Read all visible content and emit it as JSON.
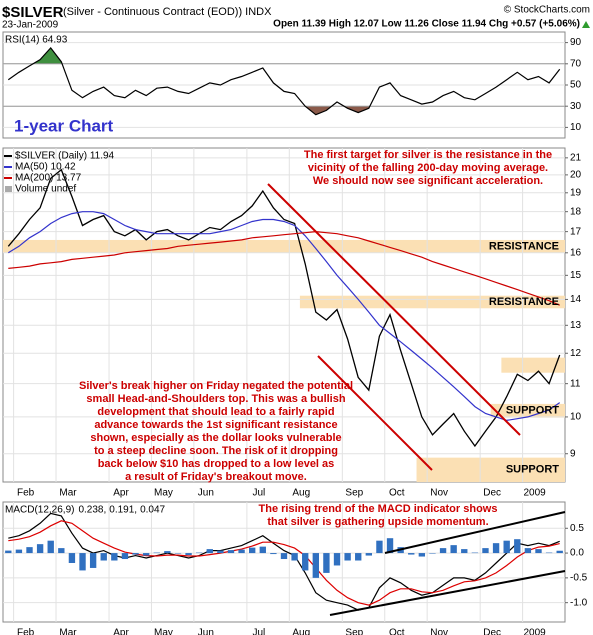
{
  "header": {
    "symbol": "$SILVER",
    "subtitle": "(Silver - Continuous Contract (EOD)) INDX",
    "copyright": "© StockCharts.com",
    "date": "23-Jan-2009",
    "quote": "Open 11.39 High 12.07 Low 11.26 Close 11.94 Chg +0.57 (+5.06%)"
  },
  "label": "1-year Chart",
  "annotations": {
    "target": [
      "The first target for silver is the resistance in the",
      "vicinity of the falling 200-day moving average.",
      "We should now see significant acceleration."
    ],
    "breakout": [
      "Silver's break higher on Friday negated the potential",
      "small Head-and-Shoulders top. This was a bullish",
      "development that should lead to a fairly rapid",
      "advance towards the 1st significant resistance",
      "shown, especially as the dollar looks vulnerable",
      "to a steep decline soon. The risk of it dropping",
      "back below $10 has dropped to a low level as",
      "a result of Friday's breakout move."
    ],
    "macd": [
      "The rising trend of the MACD indicator shows",
      "that silver is gathering upside momentum."
    ]
  },
  "chart_data": [
    {
      "type": "line",
      "ylim": [
        0,
        100
      ],
      "yticks": [
        10,
        30,
        50,
        70,
        90
      ],
      "grid": true,
      "fills": [
        {
          "level": 70,
          "side": "above",
          "color": "#3f8f3f"
        },
        {
          "level": 30,
          "side": "below",
          "color": "#8b5a4a"
        }
      ],
      "series": [
        {
          "name": "RSI(14) 64.93",
          "color": "#000000",
          "values": [
            55,
            62,
            68,
            74,
            85,
            72,
            45,
            38,
            44,
            48,
            40,
            38,
            45,
            40,
            47,
            48,
            44,
            42,
            47,
            52,
            50,
            55,
            58,
            62,
            66,
            52,
            44,
            42,
            30,
            22,
            26,
            34,
            28,
            24,
            28,
            48,
            52,
            40,
            36,
            32,
            34,
            40,
            44,
            38,
            36,
            42,
            48,
            55,
            62,
            55,
            58,
            52,
            64.93
          ]
        }
      ]
    },
    {
      "type": "line",
      "log": true,
      "ylim": [
        8.3,
        21.6
      ],
      "yticks": [
        9,
        10,
        11,
        12,
        13,
        14,
        15,
        16,
        17,
        18,
        19,
        20,
        21
      ],
      "grid": true,
      "categories": [
        null,
        "Feb",
        null,
        null,
        null,
        "Mar",
        null,
        null,
        null,
        null,
        "Apr",
        null,
        null,
        null,
        "May",
        null,
        null,
        null,
        "Jun",
        null,
        null,
        null,
        null,
        "Jul",
        null,
        null,
        null,
        "Aug",
        null,
        null,
        null,
        null,
        "Sep",
        null,
        null,
        null,
        "Oct",
        null,
        null,
        null,
        "Nov",
        null,
        null,
        null,
        null,
        "Dec",
        null,
        null,
        null,
        "2009",
        null,
        null,
        null
      ],
      "legend_extra": "Volume undef",
      "zones": [
        {
          "low": 16.0,
          "high": 16.6,
          "from": 0,
          "label": "RESISTANCE"
        },
        {
          "low": 13.65,
          "high": 14.15,
          "from": 28,
          "label": "RESISTANCE"
        },
        {
          "low": 11.35,
          "high": 11.85,
          "from": 47
        },
        {
          "low": 9.98,
          "high": 10.38,
          "from": 46,
          "label": "SUPPORT"
        },
        {
          "low": 8.3,
          "high": 8.9,
          "from": 39,
          "label": "SUPPORT"
        }
      ],
      "series": [
        {
          "name": "$SILVER (Daily) 11.94",
          "color": "#000000",
          "values": [
            16.3,
            16.9,
            17.6,
            18.2,
            19.8,
            20.3,
            18.8,
            17.3,
            17.6,
            17.8,
            17.0,
            16.8,
            17.1,
            16.6,
            17.0,
            17.1,
            16.8,
            16.6,
            16.9,
            17.2,
            17.1,
            17.5,
            17.8,
            18.3,
            19.1,
            18.2,
            17.6,
            17.4,
            15.5,
            13.5,
            13.2,
            13.6,
            12.5,
            11.2,
            10.8,
            12.6,
            13.4,
            12.1,
            11.0,
            10.0,
            9.5,
            9.8,
            10.1,
            9.6,
            9.2,
            9.6,
            10.0,
            10.6,
            11.3,
            11.1,
            11.4,
            11.0,
            11.94
          ]
        },
        {
          "name": "MA(50) 10.42",
          "color": "#3333cc",
          "values": [
            16.0,
            16.3,
            16.7,
            17.0,
            17.4,
            17.7,
            17.9,
            18.0,
            18.0,
            17.9,
            17.6,
            17.3,
            17.1,
            17.0,
            16.9,
            16.9,
            16.9,
            16.9,
            16.9,
            16.9,
            17.0,
            17.1,
            17.3,
            17.5,
            17.6,
            17.6,
            17.5,
            17.3,
            16.8,
            16.2,
            15.6,
            15.0,
            14.5,
            14.0,
            13.5,
            13.0,
            12.7,
            12.4,
            12.1,
            11.8,
            11.5,
            11.2,
            10.9,
            10.6,
            10.3,
            10.1,
            10.0,
            9.9,
            9.95,
            10.0,
            10.1,
            10.2,
            10.42
          ]
        },
        {
          "name": "MA(200) 13.77",
          "color": "#cc0000",
          "values": [
            15.3,
            15.35,
            15.4,
            15.5,
            15.55,
            15.6,
            15.7,
            15.75,
            15.8,
            15.85,
            15.9,
            16.0,
            16.05,
            16.1,
            16.15,
            16.2,
            16.3,
            16.35,
            16.4,
            16.45,
            16.5,
            16.55,
            16.6,
            16.7,
            16.75,
            16.8,
            16.85,
            16.9,
            16.95,
            17.0,
            16.95,
            16.9,
            16.8,
            16.7,
            16.55,
            16.4,
            16.25,
            16.1,
            15.95,
            15.8,
            15.6,
            15.45,
            15.3,
            15.15,
            15.0,
            14.85,
            14.7,
            14.55,
            14.4,
            14.25,
            14.1,
            13.95,
            13.77
          ]
        }
      ]
    },
    {
      "type": "line",
      "title": "MACD(12,26,9)",
      "ylim": [
        -1.39,
        1.03
      ],
      "yticks": [
        {
          "value": -1.0,
          "label": "-1.0"
        },
        -0.5,
        {
          "value": 0,
          "label": "0.0"
        },
        0.5
      ],
      "grid": true,
      "categories": [
        null,
        "Feb",
        null,
        null,
        null,
        "Mar",
        null,
        null,
        null,
        null,
        "Apr",
        null,
        null,
        null,
        "May",
        null,
        null,
        null,
        "Jun",
        null,
        null,
        null,
        null,
        "Jul",
        null,
        null,
        null,
        "Aug",
        null,
        null,
        null,
        null,
        "Sep",
        null,
        null,
        null,
        "Oct",
        null,
        null,
        null,
        "Nov",
        null,
        null,
        null,
        null,
        "Dec",
        null,
        null,
        null,
        "2009",
        null,
        null,
        null
      ],
      "series": [
        {
          "name": "0.238,",
          "type": "line",
          "color": "#000000",
          "values": [
            0.3,
            0.35,
            0.45,
            0.6,
            0.8,
            0.75,
            0.4,
            0.1,
            0.0,
            0.05,
            -0.05,
            -0.1,
            -0.05,
            -0.1,
            -0.05,
            0.0,
            -0.05,
            -0.1,
            -0.05,
            0.05,
            0.05,
            0.1,
            0.15,
            0.25,
            0.35,
            0.2,
            0.05,
            -0.05,
            -0.4,
            -0.8,
            -0.95,
            -1.0,
            -1.05,
            -1.15,
            -1.1,
            -0.7,
            -0.5,
            -0.6,
            -0.75,
            -0.85,
            -0.8,
            -0.65,
            -0.5,
            -0.5,
            -0.55,
            -0.4,
            -0.2,
            0.0,
            0.2,
            0.15,
            0.2,
            0.15,
            0.238
          ]
        },
        {
          "name": "0.191,",
          "type": "line",
          "color": "#dd0000",
          "values": [
            0.25,
            0.28,
            0.33,
            0.42,
            0.55,
            0.65,
            0.6,
            0.45,
            0.3,
            0.2,
            0.1,
            0.02,
            -0.02,
            -0.05,
            -0.06,
            -0.04,
            -0.04,
            -0.06,
            -0.06,
            -0.03,
            0.0,
            0.04,
            0.08,
            0.14,
            0.22,
            0.22,
            0.17,
            0.1,
            -0.05,
            -0.3,
            -0.55,
            -0.75,
            -0.9,
            -1.0,
            -1.05,
            -0.95,
            -0.8,
            -0.72,
            -0.72,
            -0.78,
            -0.8,
            -0.75,
            -0.66,
            -0.58,
            -0.56,
            -0.5,
            -0.4,
            -0.25,
            -0.08,
            0.05,
            0.12,
            0.14,
            0.191
          ]
        },
        {
          "name": "0.047",
          "type": "bar",
          "color": "#3070c0",
          "values": [
            0.05,
            0.07,
            0.12,
            0.18,
            0.25,
            0.1,
            -0.2,
            -0.35,
            -0.3,
            -0.15,
            -0.15,
            -0.12,
            -0.03,
            -0.05,
            0.01,
            0.04,
            -0.01,
            -0.04,
            0.01,
            0.08,
            0.05,
            0.06,
            0.07,
            0.11,
            0.13,
            -0.02,
            -0.12,
            -0.15,
            -0.35,
            -0.5,
            -0.4,
            -0.25,
            -0.15,
            -0.15,
            -0.05,
            0.25,
            0.3,
            0.12,
            -0.03,
            -0.07,
            0.0,
            0.1,
            0.16,
            0.08,
            0.01,
            0.1,
            0.2,
            0.25,
            0.28,
            0.1,
            0.08,
            0.01,
            0.047
          ]
        }
      ]
    }
  ]
}
